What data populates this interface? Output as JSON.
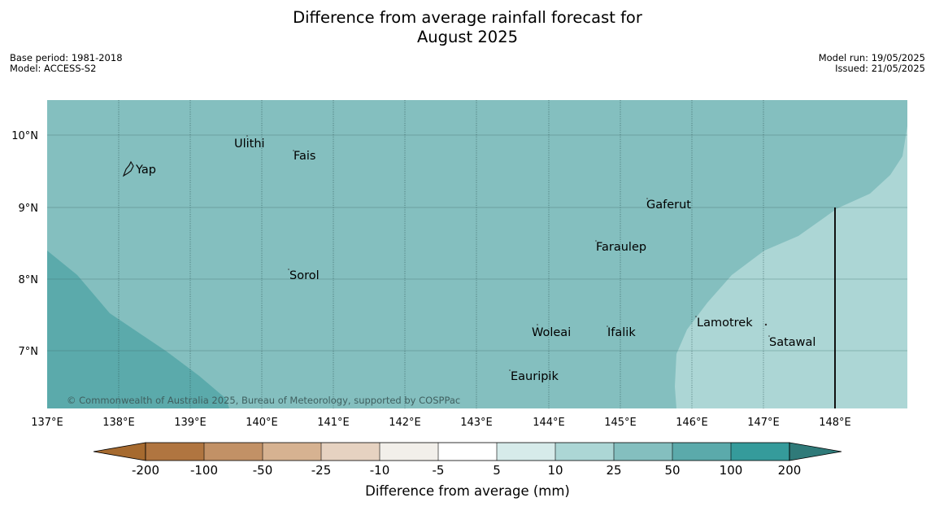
{
  "title_line1": "Difference from average rainfall forecast for",
  "title_line2": "August 2025",
  "meta_left": {
    "base_period": "Base period: 1981-2018",
    "model": "Model: ACCESS-S2"
  },
  "meta_right": {
    "model_run": "Model run: 19/05/2025",
    "issued": "Issued: 21/05/2025"
  },
  "copyright": "© Commonwealth of Australia 2025, Bureau of Meteorology, supported by COSPPac",
  "lat_labels": [
    "10°N",
    "9°N",
    "8°N",
    "7°N"
  ],
  "lon_labels": [
    "137°E",
    "138°E",
    "139°E",
    "140°E",
    "141°E",
    "142°E",
    "143°E",
    "144°E",
    "145°E",
    "146°E",
    "147°E",
    "148°E"
  ],
  "places": [
    "Yap",
    "Ulithi",
    "Fais",
    "Gaferut",
    "Faraulep",
    "Sorol",
    "Woleai",
    "Ifalik",
    "Lamotrek",
    "Satawal",
    "Eauripik"
  ],
  "colorbar": {
    "labels": [
      "-200",
      "-100",
      "-50",
      "-25",
      "-10",
      "-5",
      "5",
      "10",
      "25",
      "50",
      "100",
      "200"
    ],
    "colors": [
      "#a66a2f",
      "#b07540",
      "#c29166",
      "#d6b291",
      "#e6d2c1",
      "#f2efea",
      "#ffffff",
      "#d6ebea",
      "#acd6d5",
      "#84bfbf",
      "#5baaab",
      "#359b9b",
      "#2f7a79"
    ],
    "title": "Difference from average (mm)"
  },
  "fill_colors": {
    "band_10_25": "#acd6d5",
    "band_25_50": "#84bfbf",
    "band_50_100": "#5baaab"
  }
}
